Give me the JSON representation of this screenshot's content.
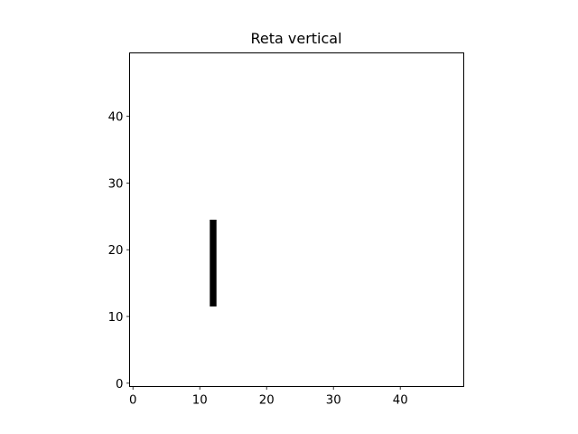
{
  "chart_data": {
    "type": "image",
    "title": "Reta vertical",
    "xlabel": "",
    "ylabel": "",
    "xlim": [
      -0.5,
      49.5
    ],
    "ylim": [
      -0.5,
      49.5
    ],
    "grid": false,
    "xticks": [
      0,
      10,
      20,
      30,
      40
    ],
    "yticks": [
      0,
      10,
      20,
      30,
      40
    ],
    "xtick_labels": [
      "0",
      "10",
      "20",
      "30",
      "40"
    ],
    "ytick_labels": [
      "0",
      "10",
      "20",
      "30",
      "40"
    ],
    "grid_size": [
      50,
      50
    ],
    "background_color": "#ffffff",
    "pixel_color": "#000000",
    "segments": [
      {
        "x": 12,
        "y_from": 12,
        "y_to": 24
      }
    ]
  }
}
